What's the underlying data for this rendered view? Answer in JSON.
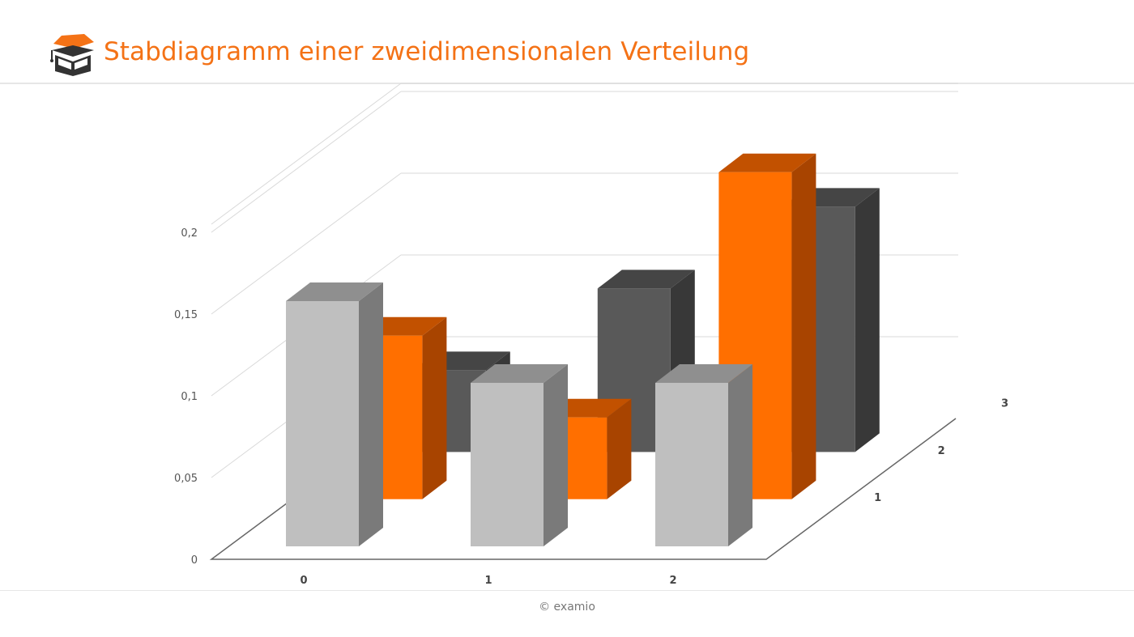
{
  "header": {
    "title": "Stabdiagramm einer zweidimensionalen Verteilung",
    "logo_icon": "graduation-cap-book-icon"
  },
  "footer": {
    "copyright": "© examio"
  },
  "chart_data": {
    "type": "bar",
    "variant": "3d-grouped",
    "categories": [
      "0",
      "1",
      "2"
    ],
    "depth_categories": [
      "1",
      "2",
      "3"
    ],
    "series": [
      {
        "values": [
          0.15,
          0.1,
          0.1
        ]
      },
      {
        "values": [
          0.1,
          0.05,
          0.2
        ]
      },
      {
        "values": [
          0.05,
          0.1,
          0.15
        ]
      }
    ],
    "y_ticks": [
      "0",
      "0,05",
      "0,1",
      "0,15",
      "0,2"
    ],
    "ylim": [
      0,
      0.2
    ],
    "grid": true,
    "colors": [
      "#bfbfbf",
      "#ff6f00",
      "#595959"
    ],
    "side_colors": [
      "#7a7a7a",
      "#a84400",
      "#383838"
    ],
    "top_colors": [
      "#8f8f8f",
      "#c25100",
      "#454545"
    ]
  }
}
